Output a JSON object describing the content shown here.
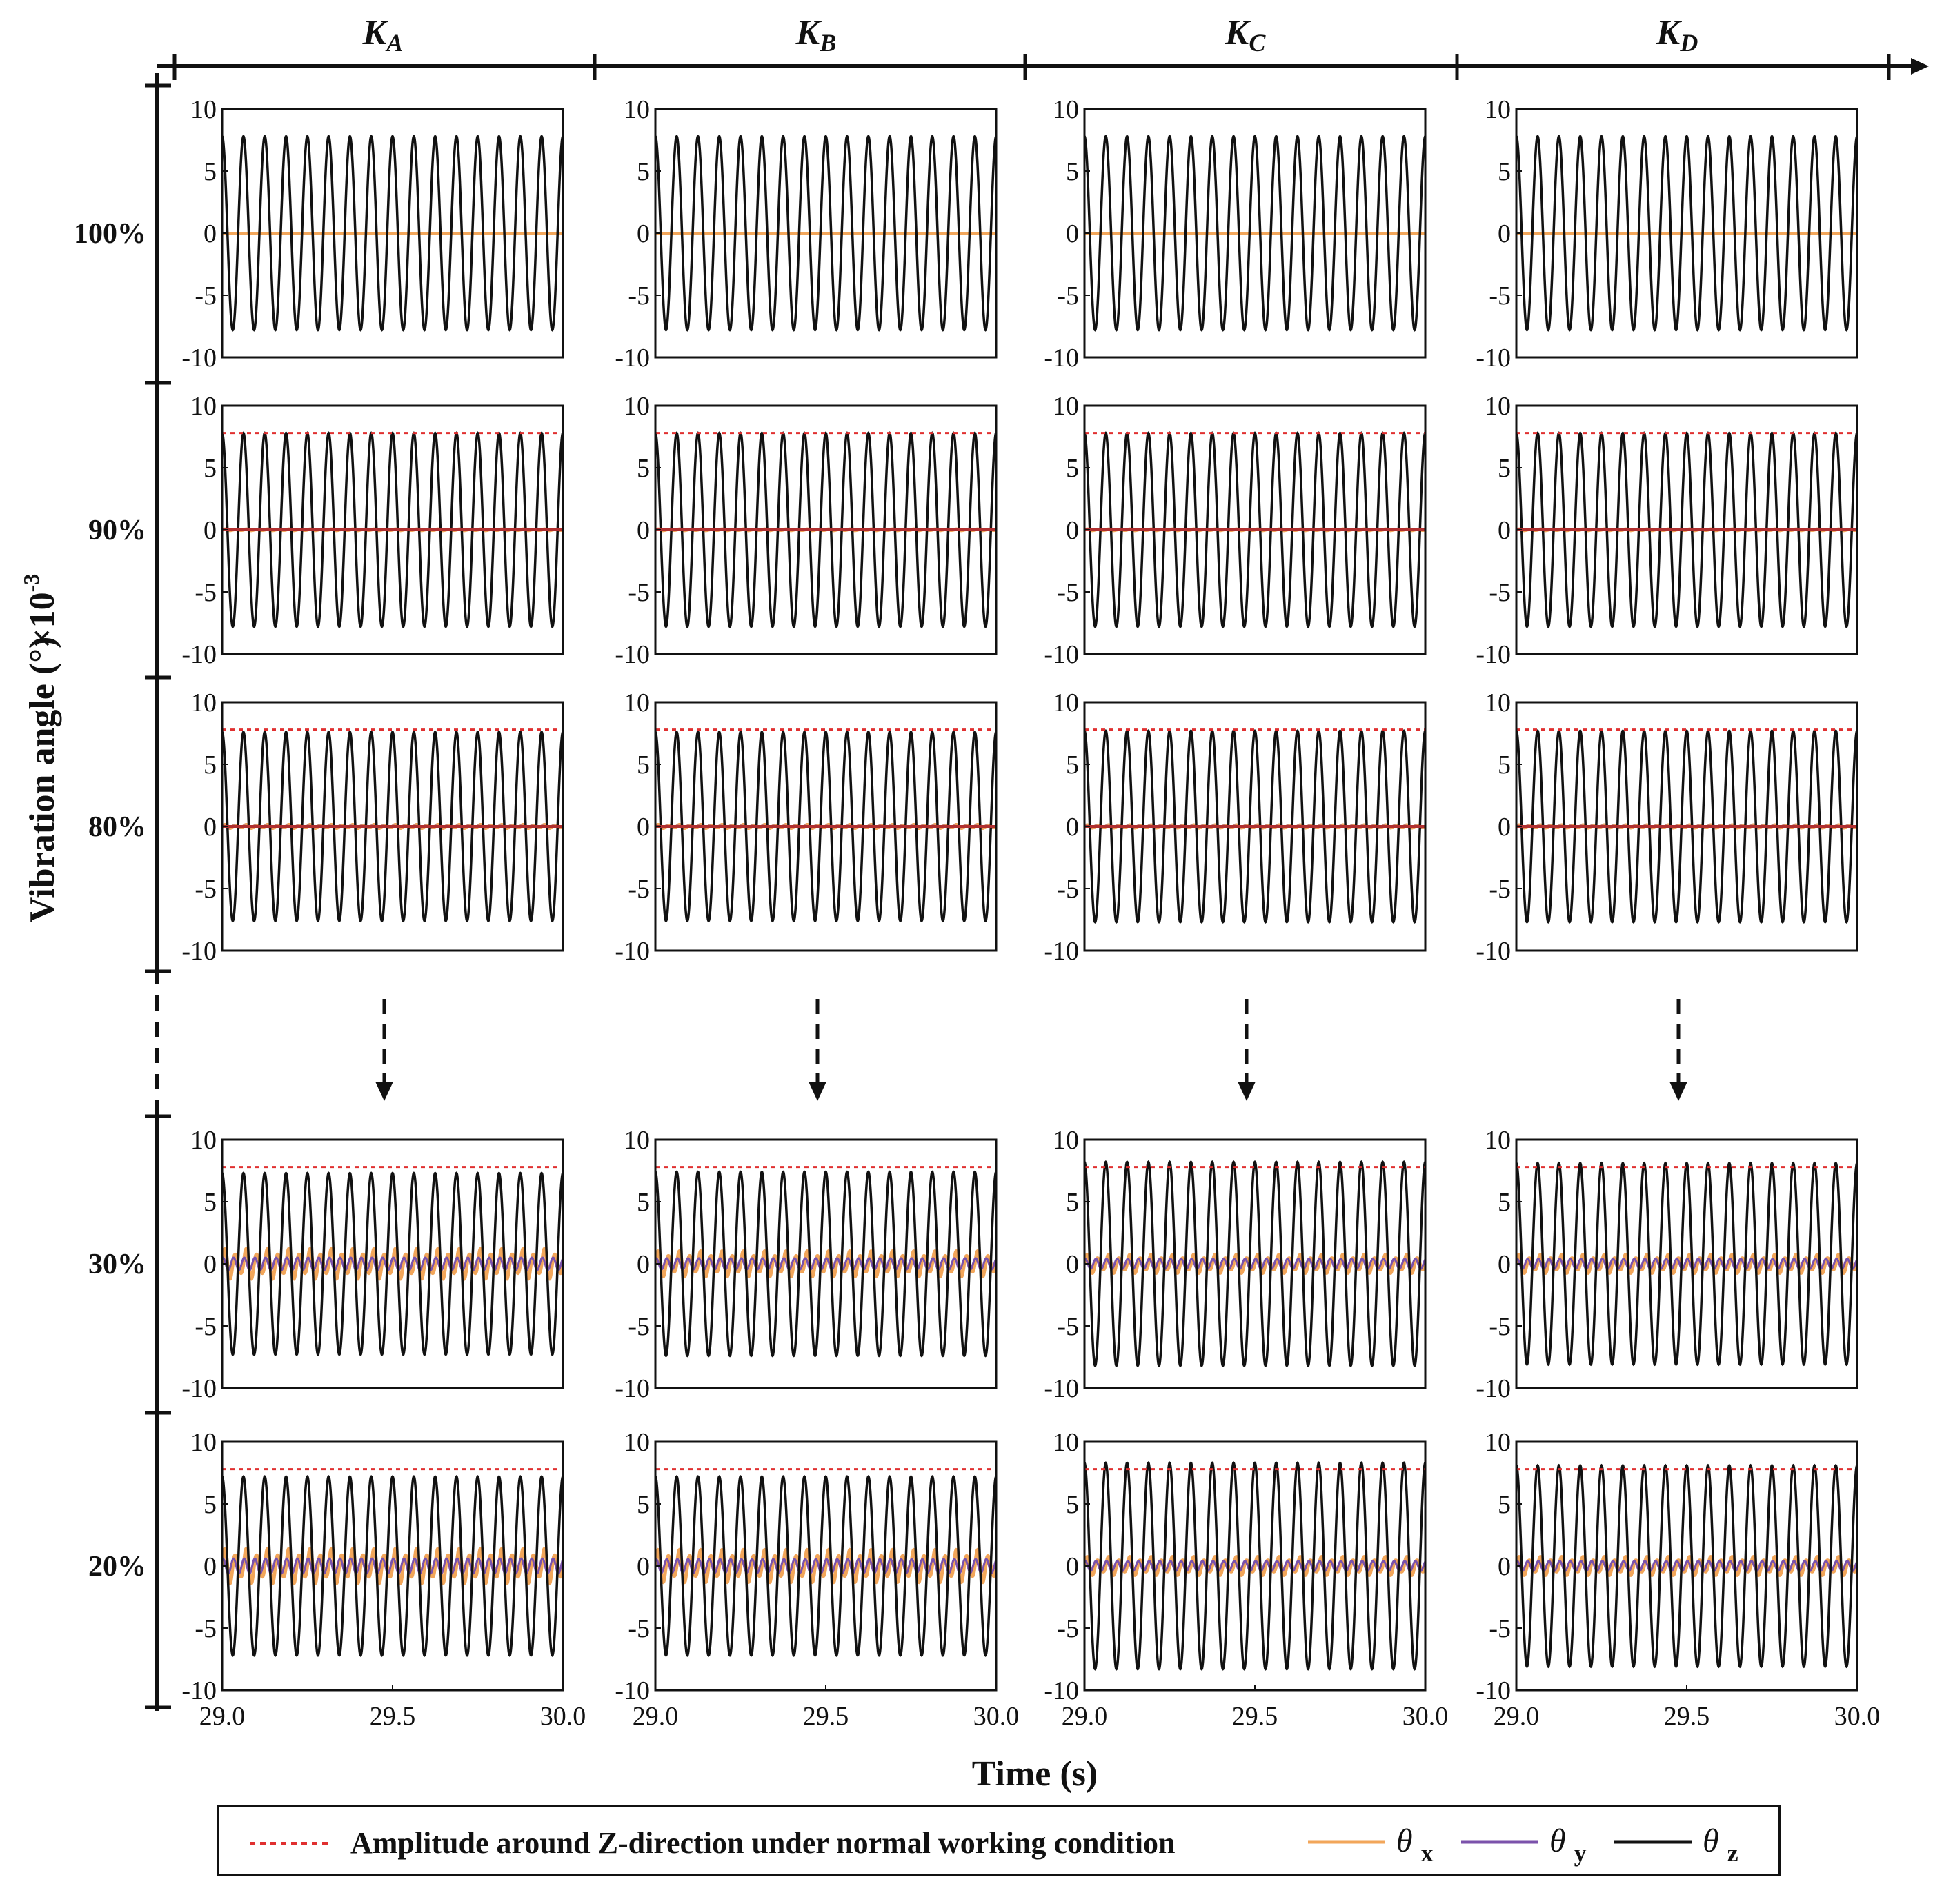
{
  "chart_data": {
    "type": "line",
    "columns": [
      {
        "label": "K",
        "sub": "A"
      },
      {
        "label": "K",
        "sub": "B"
      },
      {
        "label": "K",
        "sub": "C"
      },
      {
        "label": "K",
        "sub": "D"
      }
    ],
    "rows": [
      "100%",
      "90%",
      "80%",
      "30%",
      "20%"
    ],
    "xlabel": "Time (s)",
    "ylabel": "Vibration angle (°)",
    "yscale_note": "×10",
    "yscale_exp": "-3",
    "xlim": [
      29.0,
      30.0
    ],
    "ylim": [
      -10,
      10
    ],
    "xticks": [
      "29.0",
      "29.5",
      "30.0"
    ],
    "yticks": [
      "10",
      "5",
      "0",
      "-5",
      "-10"
    ],
    "cycles_in_window": 16,
    "reference_amplitude": 7.8,
    "panels": [
      [
        {
          "theta_z": 7.8,
          "theta_x": 0,
          "theta_y": 0,
          "ref": false
        },
        {
          "theta_z": 7.8,
          "theta_x": 0,
          "theta_y": 0,
          "ref": false
        },
        {
          "theta_z": 7.8,
          "theta_x": 0,
          "theta_y": 0,
          "ref": false
        },
        {
          "theta_z": 7.8,
          "theta_x": 0,
          "theta_y": 0,
          "ref": false
        }
      ],
      [
        {
          "theta_z": 7.8,
          "theta_x": 0.05,
          "theta_y": 0.02,
          "ref": true
        },
        {
          "theta_z": 7.8,
          "theta_x": 0.05,
          "theta_y": 0.02,
          "ref": true
        },
        {
          "theta_z": 7.8,
          "theta_x": 0.05,
          "theta_y": 0.02,
          "ref": true
        },
        {
          "theta_z": 7.8,
          "theta_x": 0.05,
          "theta_y": 0.02,
          "ref": true
        }
      ],
      [
        {
          "theta_z": 7.6,
          "theta_x": 0.15,
          "theta_y": 0.05,
          "ref": true
        },
        {
          "theta_z": 7.6,
          "theta_x": 0.15,
          "theta_y": 0.05,
          "ref": true
        },
        {
          "theta_z": 7.7,
          "theta_x": 0.12,
          "theta_y": 0.05,
          "ref": true
        },
        {
          "theta_z": 7.7,
          "theta_x": 0.12,
          "theta_y": 0.05,
          "ref": true
        }
      ],
      [
        {
          "theta_z": 7.3,
          "theta_x": 1.3,
          "theta_y": 0.5,
          "ref": true
        },
        {
          "theta_z": 7.4,
          "theta_x": 1.1,
          "theta_y": 0.45,
          "ref": true
        },
        {
          "theta_z": 8.2,
          "theta_x": 0.8,
          "theta_y": 0.4,
          "ref": true
        },
        {
          "theta_z": 8.1,
          "theta_x": 0.8,
          "theta_y": 0.4,
          "ref": true
        }
      ],
      [
        {
          "theta_z": 7.2,
          "theta_x": 1.5,
          "theta_y": 0.6,
          "ref": true
        },
        {
          "theta_z": 7.2,
          "theta_x": 1.4,
          "theta_y": 0.55,
          "ref": true
        },
        {
          "theta_z": 8.3,
          "theta_x": 0.8,
          "theta_y": 0.4,
          "ref": true
        },
        {
          "theta_z": 8.1,
          "theta_x": 0.8,
          "theta_y": 0.4,
          "ref": true
        }
      ]
    ],
    "legend": {
      "ref_label": "Amplitude around Z-direction under normal working condition",
      "series": [
        {
          "sym": "θ",
          "sub": "x",
          "color": "#f2a65a"
        },
        {
          "sym": "θ",
          "sub": "y",
          "color": "#7b52ab"
        },
        {
          "sym": "θ",
          "sub": "z",
          "color": "#111111"
        }
      ],
      "ref_color": "#e03030"
    }
  }
}
